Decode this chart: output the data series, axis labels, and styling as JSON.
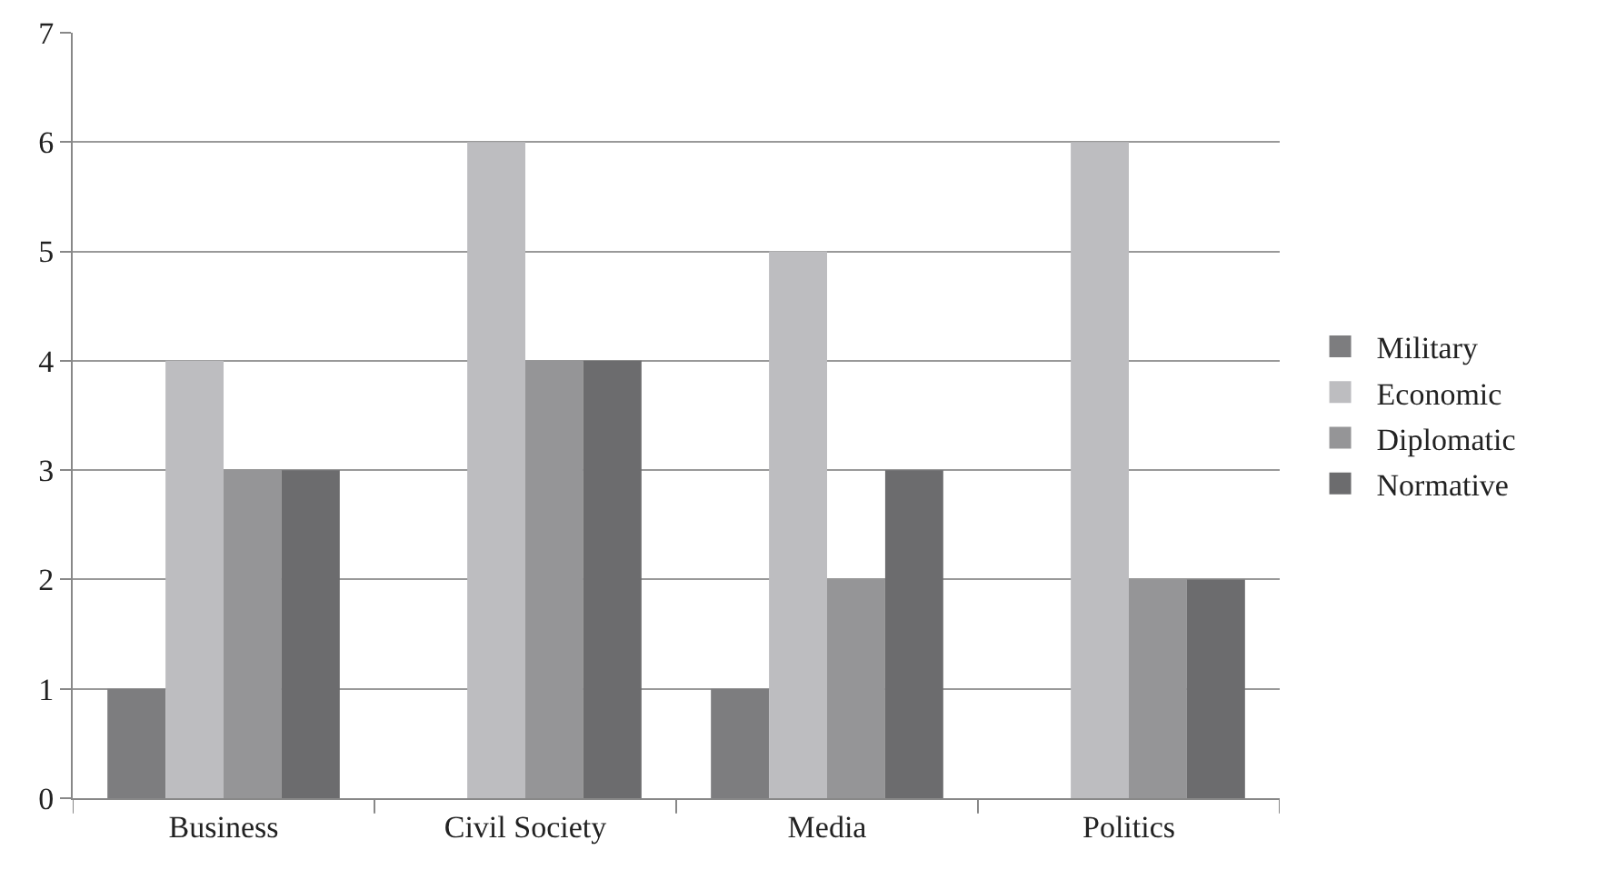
{
  "chart_data": {
    "type": "bar",
    "categories": [
      "Business",
      "Civil Society",
      "Media",
      "Politics"
    ],
    "series": [
      {
        "name": "Military",
        "color": "#7d7d7f",
        "values": [
          1,
          0,
          1,
          0
        ]
      },
      {
        "name": "Economic",
        "color": "#bdbdc0",
        "values": [
          4,
          6,
          5,
          6
        ]
      },
      {
        "name": "Diplomatic",
        "color": "#959597",
        "values": [
          3,
          4,
          2,
          2
        ]
      },
      {
        "name": "Normative",
        "color": "#6c6c6e",
        "values": [
          3,
          4,
          3,
          2
        ]
      }
    ],
    "ylim": [
      0,
      7
    ],
    "yticks": [
      0,
      1,
      2,
      3,
      4,
      5,
      6,
      7
    ],
    "grid": "y",
    "legend": "right"
  }
}
